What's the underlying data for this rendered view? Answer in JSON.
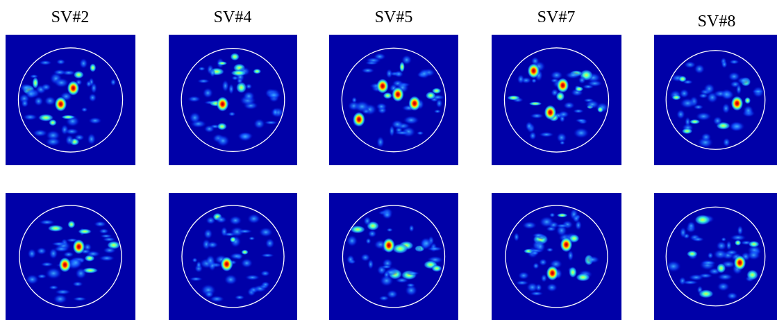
{
  "labels": [
    "SV#2",
    "SV#4",
    "SV#5",
    "SV#7",
    "SV#8"
  ]
}
